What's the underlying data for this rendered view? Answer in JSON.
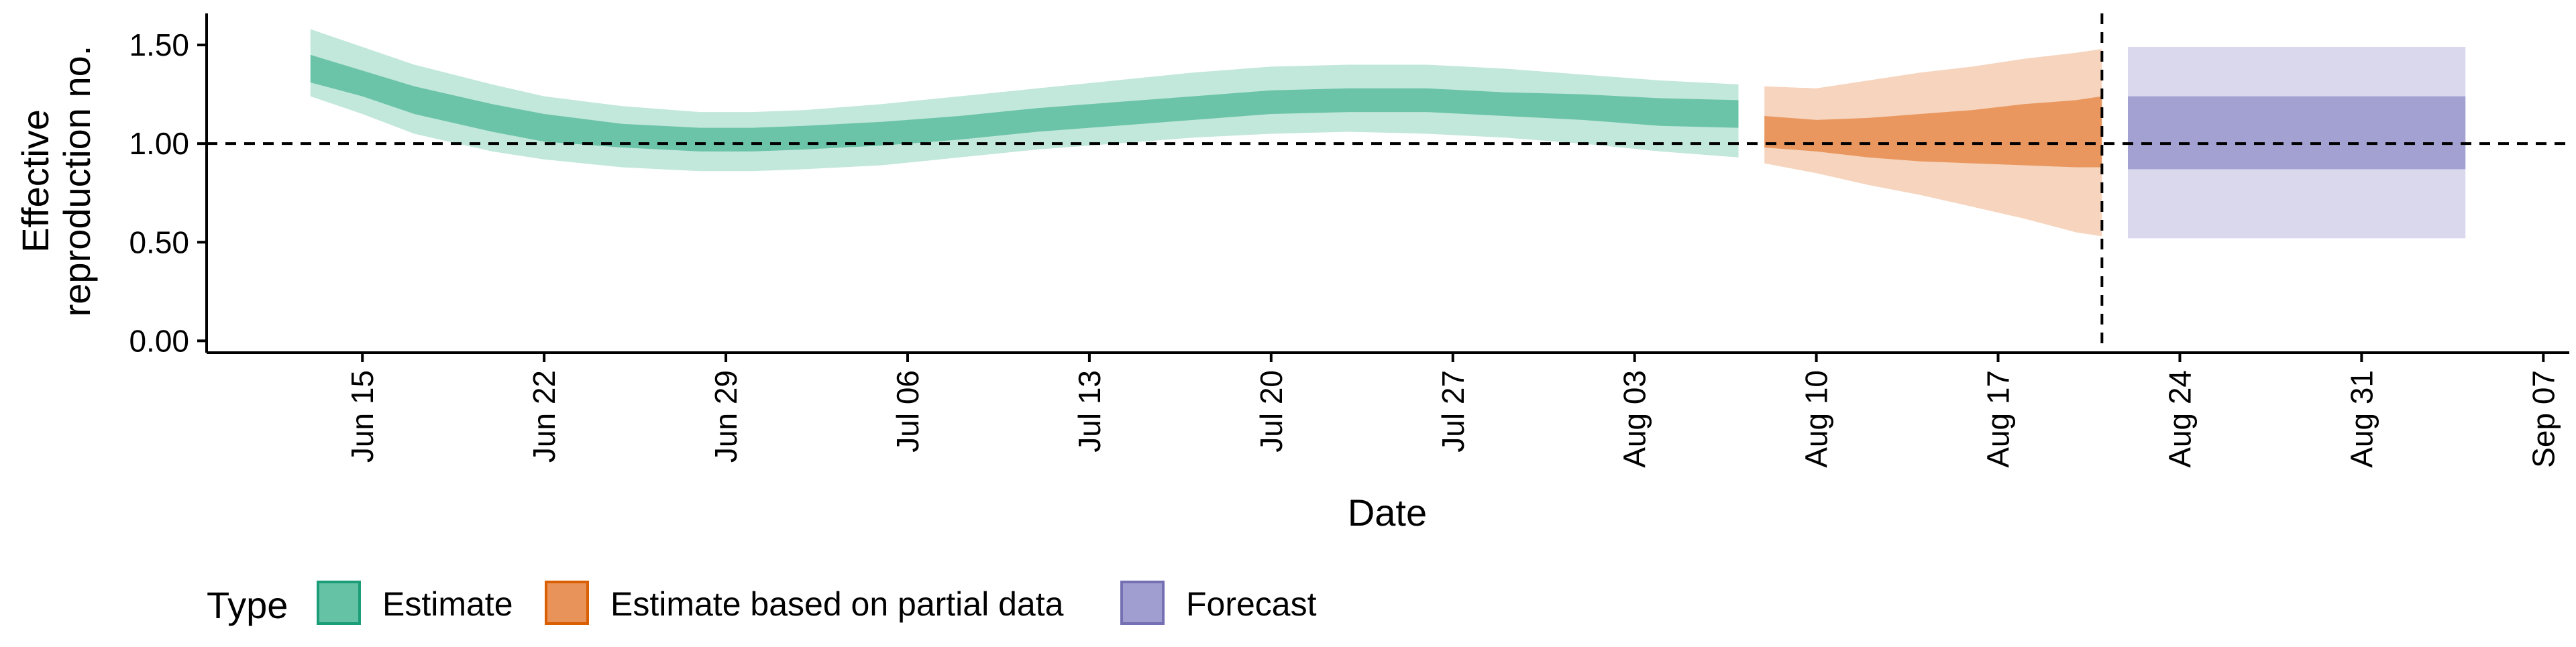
{
  "colors": {
    "estimate": "#66c2a5",
    "partial": "#e8935a",
    "forecast": "#a09ed0",
    "estimate_border": "#1b9e77",
    "partial_border": "#d95f02",
    "forecast_border": "#7570b3"
  },
  "chart_data": {
    "type": "area",
    "title": "",
    "xlabel": "Date",
    "ylabel_lines": [
      "Effective",
      "reproduction no."
    ],
    "x_ticks": [
      "Jun 15",
      "Jun 22",
      "Jun 29",
      "Jul 06",
      "Jul 13",
      "Jul 20",
      "Jul 27",
      "Aug 03",
      "Aug 10",
      "Aug 17",
      "Aug 24",
      "Aug 31",
      "Sep 07"
    ],
    "x_range": [
      "2020-06-09",
      "2020-09-08"
    ],
    "y_ticks": [
      "0.00",
      "0.50",
      "1.00",
      "1.50"
    ],
    "ylim": [
      -0.06,
      1.66
    ],
    "reference_line_y": 1.0,
    "reference_line_x": "2020-08-21",
    "grid": false,
    "legend": {
      "position": "bottom-left",
      "title": "Type",
      "items": [
        {
          "key": "estimate",
          "label": "Estimate"
        },
        {
          "key": "partial",
          "label": "Estimate based on partial data"
        },
        {
          "key": "forecast",
          "label": "Forecast"
        }
      ]
    },
    "series": [
      {
        "name": "Estimate",
        "key": "estimate",
        "dates": [
          "2020-06-13",
          "2020-06-15",
          "2020-06-17",
          "2020-06-20",
          "2020-06-22",
          "2020-06-25",
          "2020-06-28",
          "2020-06-30",
          "2020-07-02",
          "2020-07-05",
          "2020-07-08",
          "2020-07-11",
          "2020-07-14",
          "2020-07-17",
          "2020-07-20",
          "2020-07-23",
          "2020-07-26",
          "2020-07-29",
          "2020-08-01",
          "2020-08-04",
          "2020-08-07"
        ],
        "median": [
          1.38,
          1.3,
          1.22,
          1.13,
          1.08,
          1.04,
          1.02,
          1.02,
          1.03,
          1.05,
          1.08,
          1.12,
          1.15,
          1.18,
          1.21,
          1.22,
          1.22,
          1.2,
          1.19,
          1.16,
          1.15
        ],
        "inner_lower": [
          1.31,
          1.24,
          1.15,
          1.06,
          1.01,
          0.98,
          0.96,
          0.96,
          0.97,
          0.99,
          1.02,
          1.06,
          1.09,
          1.12,
          1.15,
          1.16,
          1.16,
          1.14,
          1.12,
          1.09,
          1.08
        ],
        "inner_upper": [
          1.45,
          1.37,
          1.29,
          1.2,
          1.15,
          1.1,
          1.08,
          1.08,
          1.09,
          1.11,
          1.14,
          1.18,
          1.21,
          1.24,
          1.27,
          1.28,
          1.28,
          1.26,
          1.25,
          1.23,
          1.22
        ],
        "outer_lower": [
          1.24,
          1.15,
          1.05,
          0.96,
          0.92,
          0.88,
          0.86,
          0.86,
          0.87,
          0.89,
          0.93,
          0.97,
          1.0,
          1.03,
          1.05,
          1.06,
          1.05,
          1.03,
          1.0,
          0.96,
          0.93
        ],
        "outer_upper": [
          1.58,
          1.49,
          1.4,
          1.3,
          1.24,
          1.19,
          1.16,
          1.16,
          1.17,
          1.2,
          1.24,
          1.28,
          1.32,
          1.36,
          1.39,
          1.4,
          1.4,
          1.38,
          1.35,
          1.32,
          1.3
        ]
      },
      {
        "name": "Estimate based on partial data",
        "key": "partial",
        "dates": [
          "2020-08-08",
          "2020-08-10",
          "2020-08-12",
          "2020-08-14",
          "2020-08-16",
          "2020-08-18",
          "2020-08-20",
          "2020-08-21"
        ],
        "median": [
          1.05,
          1.03,
          1.02,
          1.01,
          1.02,
          1.04,
          1.05,
          1.06
        ],
        "inner_lower": [
          0.98,
          0.96,
          0.93,
          0.91,
          0.9,
          0.89,
          0.88,
          0.88
        ],
        "inner_upper": [
          1.14,
          1.12,
          1.13,
          1.15,
          1.17,
          1.2,
          1.22,
          1.24
        ],
        "outer_lower": [
          0.9,
          0.85,
          0.79,
          0.74,
          0.68,
          0.62,
          0.55,
          0.53
        ],
        "outer_upper": [
          1.29,
          1.28,
          1.32,
          1.36,
          1.39,
          1.43,
          1.46,
          1.48
        ]
      },
      {
        "name": "Forecast",
        "key": "forecast",
        "dates": [
          "2020-08-22",
          "2020-09-04"
        ],
        "median": [
          1.06,
          1.06
        ],
        "inner_lower": [
          0.87,
          0.87
        ],
        "inner_upper": [
          1.24,
          1.24
        ],
        "outer_lower": [
          0.52,
          0.52
        ],
        "outer_upper": [
          1.49,
          1.49
        ]
      }
    ]
  }
}
